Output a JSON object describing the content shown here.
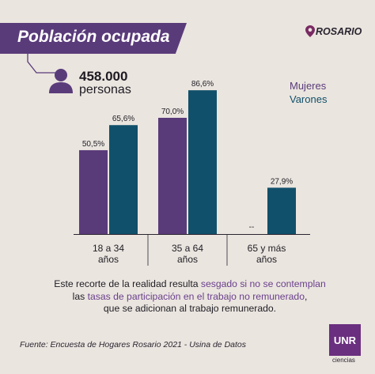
{
  "title": "Población ocupada",
  "brand": {
    "name": "ROSARIO",
    "icon": "map-pin-icon"
  },
  "headcount": {
    "value": "458.000",
    "unit": "personas",
    "icon": "person-icon"
  },
  "legend": {
    "mujeres": "Mujeres",
    "varones": "Varones"
  },
  "colors": {
    "mujeres": "#5a3b7a",
    "varones": "#11506a",
    "banner": "#5a3b7a",
    "background": "#eae5df"
  },
  "chart_data": {
    "type": "bar",
    "categories": [
      "18 a 34 años",
      "35 a 64 años",
      "65 y más años"
    ],
    "series": [
      {
        "name": "Mujeres",
        "values": [
          50.5,
          70.0,
          null
        ],
        "labels": [
          "50,5%",
          "70,0%",
          "--"
        ]
      },
      {
        "name": "Varones",
        "values": [
          65.6,
          86.6,
          27.9
        ],
        "labels": [
          "65,6%",
          "86,6%",
          "27,9%"
        ]
      }
    ],
    "title": "Población ocupada",
    "ylim": [
      0,
      100
    ],
    "grid": false,
    "legend_position": "top-right"
  },
  "note": {
    "part1": "Este recorte de la realidad resulta ",
    "highlight1": "sesgado si no se contemplan",
    "part2": "las ",
    "highlight2": "tasas de participación en el trabajo no remunerado",
    "part3": ",",
    "part4": "que se adicionan al trabajo remunerado."
  },
  "source": "Fuente: Encuesta de Hogares Rosario 2021 - Usina de Datos",
  "logo": {
    "text": "UNR",
    "subtext": "ciencias"
  }
}
